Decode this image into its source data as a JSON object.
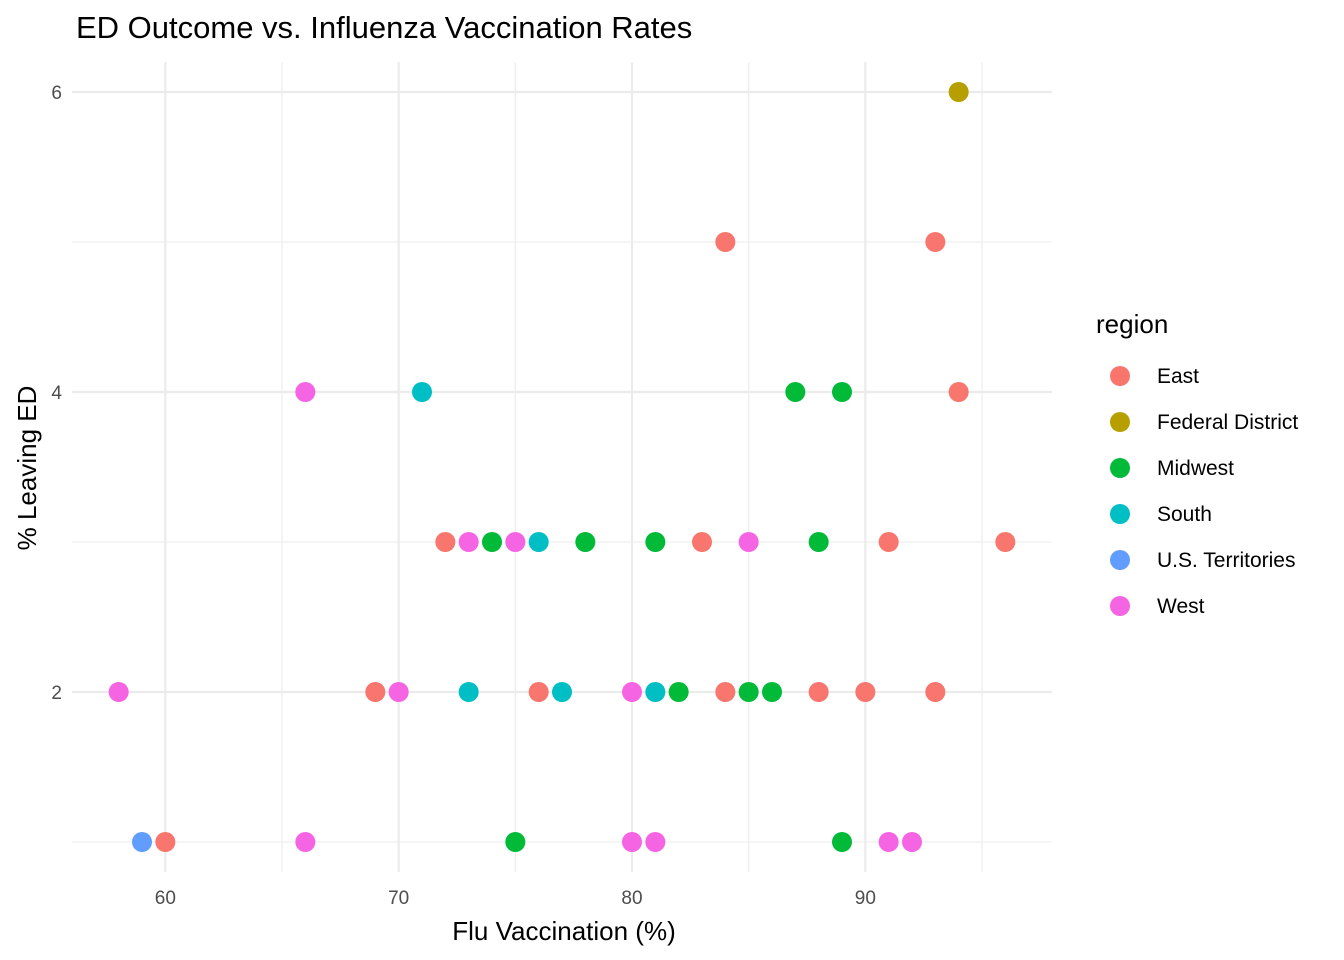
{
  "chart_data": {
    "type": "scatter",
    "title": "ED Outcome vs. Influenza Vaccination Rates",
    "xlabel": "Flu Vaccination (%)",
    "ylabel": "% Leaving ED",
    "xlim": [
      56,
      98
    ],
    "ylim": [
      0.8,
      6.2
    ],
    "x_ticks": [
      "60",
      "70",
      "80",
      "90"
    ],
    "x_tick_values": [
      60,
      70,
      80,
      90
    ],
    "y_ticks": [
      "2",
      "4",
      "6"
    ],
    "y_tick_values": [
      2,
      4,
      6
    ],
    "grid": true,
    "legend": {
      "title": "region",
      "position": "right",
      "entries": [
        {
          "name": "East",
          "color": "#F8766D"
        },
        {
          "name": "Federal District",
          "color": "#B79F00"
        },
        {
          "name": "Midwest",
          "color": "#00BA38"
        },
        {
          "name": "South",
          "color": "#00BFC4"
        },
        {
          "name": "U.S. Territories",
          "color": "#619CFF"
        },
        {
          "name": "West",
          "color": "#F564E3"
        }
      ]
    },
    "series": [
      {
        "name": "East",
        "color": "#F8766D",
        "points": [
          {
            "x": 60,
            "y": 1
          },
          {
            "x": 69,
            "y": 2
          },
          {
            "x": 72,
            "y": 3
          },
          {
            "x": 76,
            "y": 2
          },
          {
            "x": 83,
            "y": 3
          },
          {
            "x": 84,
            "y": 2
          },
          {
            "x": 84,
            "y": 5
          },
          {
            "x": 88,
            "y": 2
          },
          {
            "x": 90,
            "y": 2
          },
          {
            "x": 91,
            "y": 3
          },
          {
            "x": 93,
            "y": 2
          },
          {
            "x": 93,
            "y": 5
          },
          {
            "x": 94,
            "y": 4
          },
          {
            "x": 96,
            "y": 3
          }
        ]
      },
      {
        "name": "Federal District",
        "color": "#B79F00",
        "points": [
          {
            "x": 94,
            "y": 6
          }
        ]
      },
      {
        "name": "Midwest",
        "color": "#00BA38",
        "points": [
          {
            "x": 74,
            "y": 3
          },
          {
            "x": 75,
            "y": 1
          },
          {
            "x": 78,
            "y": 3
          },
          {
            "x": 81,
            "y": 3
          },
          {
            "x": 82,
            "y": 2
          },
          {
            "x": 85,
            "y": 2
          },
          {
            "x": 86,
            "y": 2
          },
          {
            "x": 87,
            "y": 4
          },
          {
            "x": 88,
            "y": 3
          },
          {
            "x": 89,
            "y": 4
          },
          {
            "x": 89,
            "y": 1
          }
        ]
      },
      {
        "name": "South",
        "color": "#00BFC4",
        "points": [
          {
            "x": 71,
            "y": 4
          },
          {
            "x": 73,
            "y": 2
          },
          {
            "x": 76,
            "y": 3
          },
          {
            "x": 77,
            "y": 2
          },
          {
            "x": 81,
            "y": 2
          }
        ]
      },
      {
        "name": "U.S. Territories",
        "color": "#619CFF",
        "points": [
          {
            "x": 59,
            "y": 1
          }
        ]
      },
      {
        "name": "West",
        "color": "#F564E3",
        "points": [
          {
            "x": 58,
            "y": 2
          },
          {
            "x": 66,
            "y": 4
          },
          {
            "x": 66,
            "y": 1
          },
          {
            "x": 70,
            "y": 2
          },
          {
            "x": 73,
            "y": 3
          },
          {
            "x": 75,
            "y": 3
          },
          {
            "x": 80,
            "y": 2
          },
          {
            "x": 80,
            "y": 1
          },
          {
            "x": 81,
            "y": 1
          },
          {
            "x": 85,
            "y": 3
          },
          {
            "x": 91,
            "y": 1
          },
          {
            "x": 92,
            "y": 1
          }
        ]
      }
    ]
  }
}
